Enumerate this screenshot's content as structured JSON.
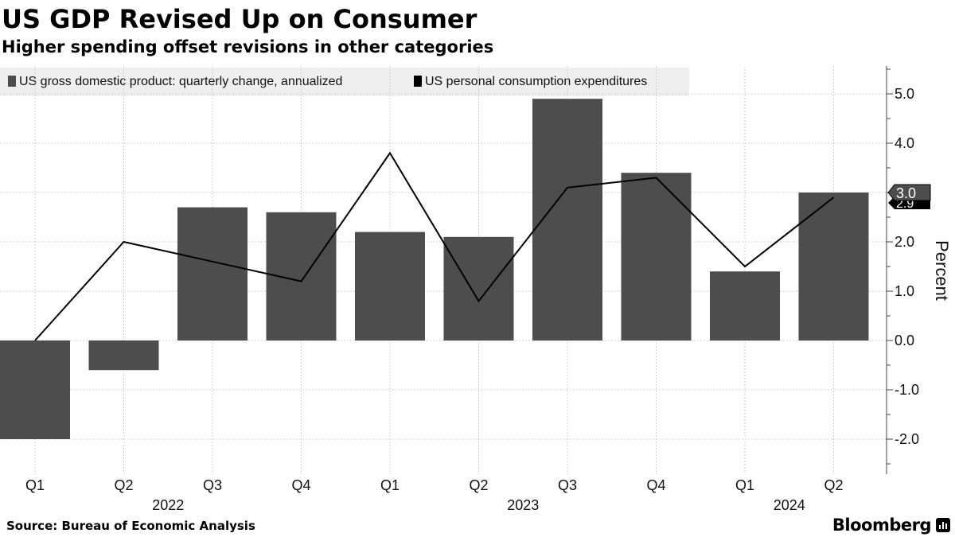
{
  "chart_data": {
    "type": "bar",
    "title": "US GDP Revised Up on Consumer",
    "subtitle": "Higher spending offset revisions in other categories",
    "categories": [
      "Q1",
      "Q2",
      "Q3",
      "Q4",
      "Q1",
      "Q2",
      "Q3",
      "Q4",
      "Q1",
      "Q2"
    ],
    "year_labels": [
      {
        "label": "2022",
        "center_index": 1.5
      },
      {
        "label": "2023",
        "center_index": 5.5
      },
      {
        "label": "2024",
        "center_index": 8.5
      }
    ],
    "series": [
      {
        "name": "US gross domestic product: quarterly change, annualized",
        "type": "bar",
        "color": "#4d4d4d",
        "values": [
          -2.0,
          -0.6,
          2.7,
          2.6,
          2.2,
          2.1,
          4.9,
          3.4,
          1.4,
          3.0
        ]
      },
      {
        "name": "US personal consumption expenditures",
        "type": "line",
        "color": "#000000",
        "values": [
          0.0,
          2.0,
          1.6,
          1.2,
          3.8,
          0.8,
          3.1,
          3.3,
          1.5,
          2.9
        ]
      }
    ],
    "ylabel": "Percent",
    "y_ticks": [
      "5.0",
      "4.0",
      "3.0",
      "2.0",
      "1.0",
      "0.0",
      "-1.0",
      "-2.0"
    ],
    "ylim": [
      -2.7,
      5.5
    ],
    "grid": true,
    "legend_position": "top-left",
    "last_value_labels": [
      "3.0",
      "2.9"
    ]
  },
  "source": "Source: Bureau of Economic Analysis",
  "brand": "Bloomberg"
}
